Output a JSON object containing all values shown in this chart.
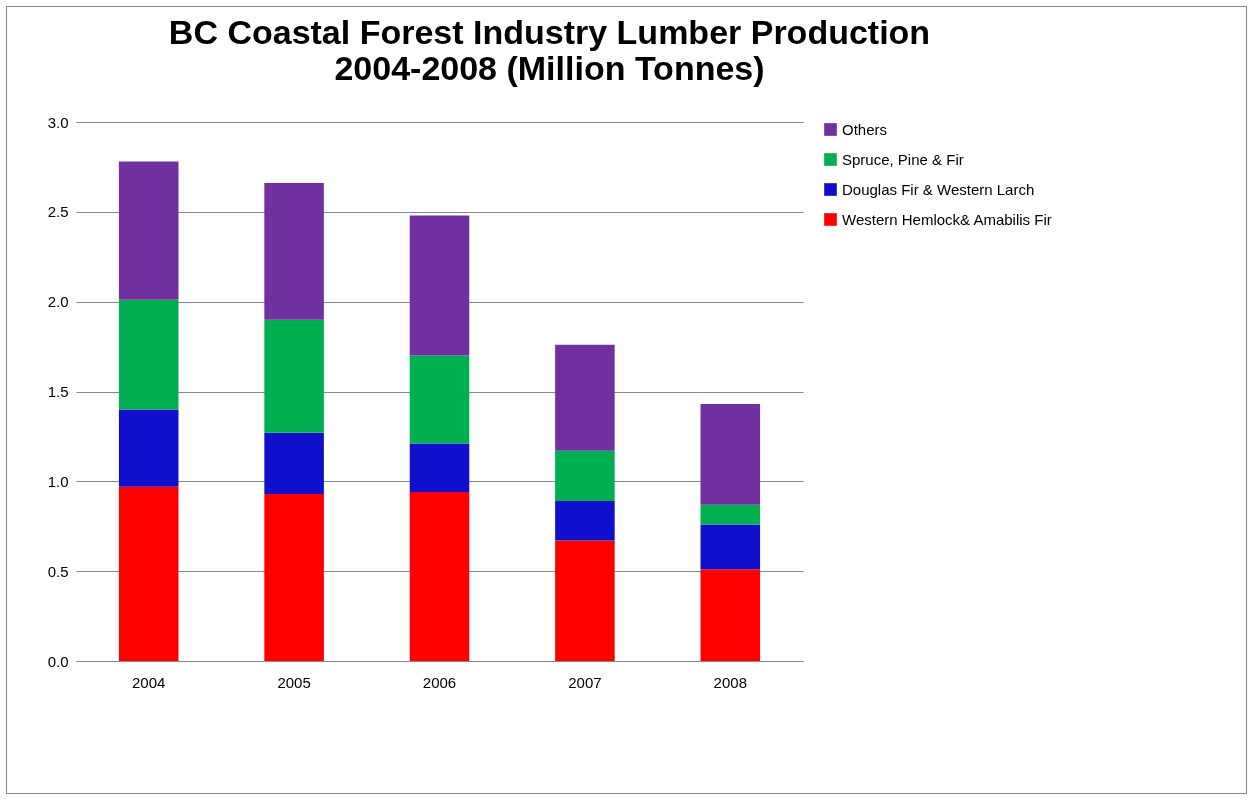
{
  "chart_data": {
    "type": "bar",
    "title": "BC Coastal Forest Industry Lumber Production\n2004-2008 (Million Tonnes)",
    "stacked": true,
    "categories": [
      "2004",
      "2005",
      "2006",
      "2007",
      "2008"
    ],
    "series": [
      {
        "name": "Western Hemlock& Amabilis Fir",
        "color": "#ff0000",
        "values": [
          0.97,
          0.93,
          0.94,
          0.67,
          0.51
        ]
      },
      {
        "name": "Douglas Fir & Western Larch",
        "color": "#1010cc",
        "values": [
          0.43,
          0.34,
          0.27,
          0.22,
          0.25
        ]
      },
      {
        "name": "Spruce, Pine & Fir",
        "color": "#00b050",
        "values": [
          0.61,
          0.63,
          0.49,
          0.28,
          0.11
        ]
      },
      {
        "name": "Others",
        "color": "#7030a0",
        "values": [
          0.77,
          0.76,
          0.78,
          0.59,
          0.56
        ]
      }
    ],
    "ylim": [
      0,
      3
    ],
    "yticks": [
      {
        "value": 0,
        "label": "0.0"
      },
      {
        "value": 0.5,
        "label": "0.5"
      },
      {
        "value": 1,
        "label": "1.0"
      },
      {
        "value": 1.5,
        "label": "1.5"
      },
      {
        "value": 2,
        "label": "2.0"
      },
      {
        "value": 2.5,
        "label": "2.5"
      },
      {
        "value": 3,
        "label": "3.0"
      }
    ],
    "grid": "y",
    "legend": "right"
  }
}
